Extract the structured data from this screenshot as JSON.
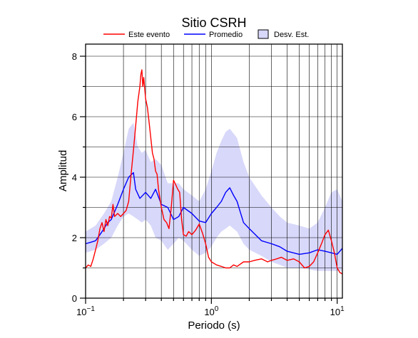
{
  "chart_data": {
    "type": "line",
    "title": "Sitio CSRH",
    "xlabel": "Periodo (s)",
    "ylabel": "Amplitud",
    "x_scale": "log",
    "xlim": [
      0.1,
      11
    ],
    "ylim": [
      0,
      8.4
    ],
    "grid": true,
    "legend_position": "top",
    "x_ticks": [
      {
        "value": 0.1,
        "base": "10",
        "exp": "−1"
      },
      {
        "value": 1,
        "base": "10",
        "exp": "0"
      },
      {
        "value": 10,
        "base": "10",
        "exp": "1"
      }
    ],
    "y_ticks": [
      0,
      2,
      4,
      6,
      8
    ],
    "legend": [
      {
        "label": "Este evento",
        "kind": "line",
        "color": "#ff0000"
      },
      {
        "label": "Promedio",
        "kind": "line",
        "color": "#0000ff"
      },
      {
        "label": "Desv. Est.",
        "kind": "patch",
        "color": "#d8d8fa"
      }
    ],
    "band": {
      "name": "Desv. Est.",
      "color": "#d8d8fa",
      "x": [
        0.1,
        0.12,
        0.14,
        0.16,
        0.18,
        0.2,
        0.22,
        0.24,
        0.26,
        0.28,
        0.3,
        0.33,
        0.36,
        0.4,
        0.45,
        0.5,
        0.55,
        0.6,
        0.7,
        0.8,
        0.9,
        1.0,
        1.1,
        1.2,
        1.3,
        1.4,
        1.6,
        1.8,
        2.0,
        2.5,
        3.0,
        3.5,
        4.0,
        5.0,
        6.0,
        7.0,
        8.0,
        9.0,
        10.0,
        11.0
      ],
      "upper": [
        2.2,
        2.4,
        2.8,
        3.2,
        4.0,
        4.8,
        5.6,
        5.8,
        5.0,
        4.8,
        4.9,
        4.5,
        4.6,
        4.4,
        3.8,
        3.8,
        3.8,
        3.6,
        3.4,
        3.2,
        3.6,
        4.2,
        4.8,
        5.2,
        5.5,
        5.6,
        5.3,
        4.5,
        4.0,
        3.4,
        3.0,
        2.7,
        2.5,
        2.4,
        2.3,
        2.5,
        3.0,
        3.5,
        3.6,
        3.2
      ],
      "lower": [
        1.5,
        1.6,
        1.8,
        2.0,
        2.4,
        2.7,
        2.8,
        2.7,
        2.6,
        2.5,
        2.6,
        2.4,
        2.0,
        1.9,
        1.6,
        1.8,
        2.0,
        1.9,
        1.6,
        1.4,
        1.5,
        1.7,
        2.0,
        2.2,
        2.3,
        2.4,
        2.2,
        1.8,
        1.6,
        1.4,
        1.2,
        1.1,
        1.0,
        1.0,
        0.95,
        0.9,
        0.9,
        0.9,
        0.9,
        0.9
      ]
    },
    "series": [
      {
        "name": "Promedio",
        "color": "#0000ff",
        "x": [
          0.1,
          0.11,
          0.12,
          0.13,
          0.14,
          0.15,
          0.16,
          0.18,
          0.2,
          0.22,
          0.24,
          0.25,
          0.27,
          0.3,
          0.33,
          0.36,
          0.4,
          0.45,
          0.5,
          0.55,
          0.6,
          0.7,
          0.8,
          0.9,
          1.0,
          1.1,
          1.2,
          1.3,
          1.4,
          1.5,
          1.6,
          1.8,
          2.0,
          2.5,
          3.0,
          3.5,
          4.0,
          5.0,
          6.0,
          7.0,
          8.0,
          9.0,
          10.0,
          11.0
        ],
        "y": [
          1.8,
          1.85,
          1.9,
          2.1,
          2.3,
          2.5,
          2.6,
          3.1,
          3.6,
          4.0,
          4.15,
          3.6,
          3.3,
          3.5,
          3.3,
          3.6,
          3.1,
          3.0,
          2.6,
          2.7,
          3.0,
          2.8,
          2.55,
          2.5,
          2.8,
          3.0,
          3.2,
          3.5,
          3.65,
          3.4,
          3.2,
          2.5,
          2.3,
          1.9,
          1.8,
          1.7,
          1.55,
          1.45,
          1.5,
          1.6,
          1.55,
          1.5,
          1.45,
          1.65
        ]
      },
      {
        "name": "Este evento",
        "color": "#ff0000",
        "x": [
          0.1,
          0.105,
          0.11,
          0.115,
          0.12,
          0.125,
          0.13,
          0.135,
          0.14,
          0.145,
          0.15,
          0.155,
          0.16,
          0.165,
          0.17,
          0.18,
          0.19,
          0.2,
          0.21,
          0.22,
          0.23,
          0.24,
          0.25,
          0.26,
          0.27,
          0.275,
          0.28,
          0.285,
          0.29,
          0.3,
          0.31,
          0.32,
          0.33,
          0.34,
          0.35,
          0.36,
          0.37,
          0.38,
          0.39,
          0.4,
          0.42,
          0.44,
          0.46,
          0.48,
          0.5,
          0.52,
          0.54,
          0.56,
          0.58,
          0.6,
          0.63,
          0.66,
          0.7,
          0.75,
          0.8,
          0.85,
          0.9,
          0.95,
          1.0,
          1.1,
          1.2,
          1.3,
          1.4,
          1.5,
          1.6,
          1.8,
          2.0,
          2.2,
          2.5,
          2.8,
          3.0,
          3.3,
          3.6,
          4.0,
          4.5,
          5.0,
          5.5,
          6.0,
          6.5,
          7.0,
          7.5,
          8.0,
          8.5,
          9.0,
          9.5,
          10.0,
          10.5,
          11.0
        ],
        "y": [
          1.0,
          1.1,
          1.05,
          1.3,
          1.6,
          1.9,
          2.3,
          2.5,
          2.2,
          2.6,
          2.4,
          2.7,
          2.65,
          3.1,
          2.7,
          2.8,
          2.7,
          2.8,
          2.9,
          3.2,
          4.1,
          4.9,
          5.7,
          6.5,
          7.0,
          7.4,
          7.55,
          7.0,
          7.3,
          6.6,
          6.3,
          5.8,
          5.3,
          4.8,
          4.6,
          4.2,
          4.1,
          3.6,
          3.3,
          3.0,
          2.6,
          2.5,
          2.3,
          3.0,
          3.9,
          3.75,
          3.6,
          3.5,
          2.6,
          2.1,
          2.05,
          2.2,
          2.1,
          2.25,
          2.45,
          2.15,
          1.8,
          1.35,
          1.2,
          1.1,
          1.05,
          1.0,
          1.0,
          1.1,
          1.05,
          1.2,
          1.2,
          1.25,
          1.3,
          1.2,
          1.25,
          1.3,
          1.35,
          1.25,
          1.3,
          1.2,
          1.0,
          1.05,
          1.2,
          1.5,
          1.8,
          2.1,
          2.25,
          1.9,
          1.5,
          1.0,
          0.85,
          0.8
        ]
      }
    ]
  }
}
